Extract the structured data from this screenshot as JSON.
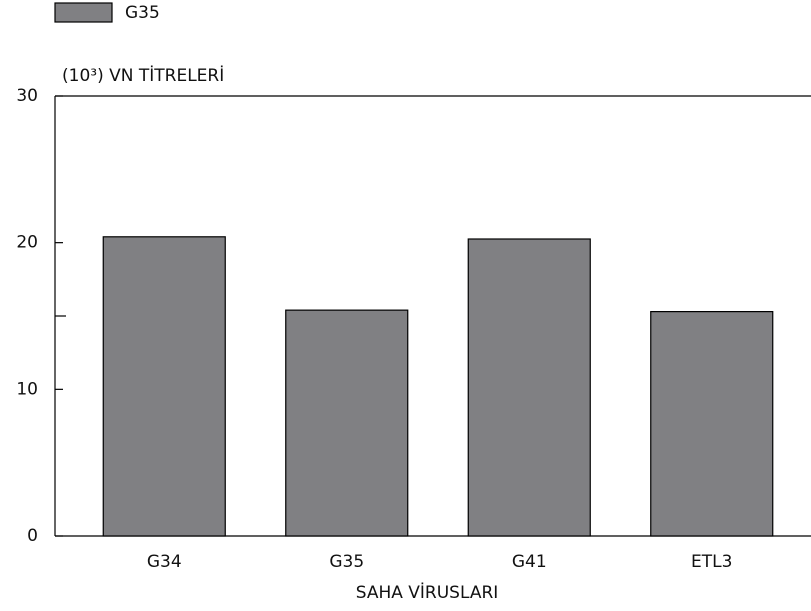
{
  "chart_data": {
    "type": "bar",
    "legend": [
      {
        "name": "G35",
        "color": "#808083"
      }
    ],
    "ylabel": "(10³) VN TİTRELERİ",
    "xlabel": "SAHA VİRUSLARI",
    "categories": [
      "G34",
      "G35",
      "G41",
      "ETL3"
    ],
    "values": [
      20.4,
      15.4,
      20.25,
      15.3
    ],
    "color": "#808083",
    "ylim": [
      0,
      30
    ],
    "yticks": [
      0,
      10,
      20,
      30
    ],
    "minor_yticks": [
      15
    ],
    "grid": false
  }
}
